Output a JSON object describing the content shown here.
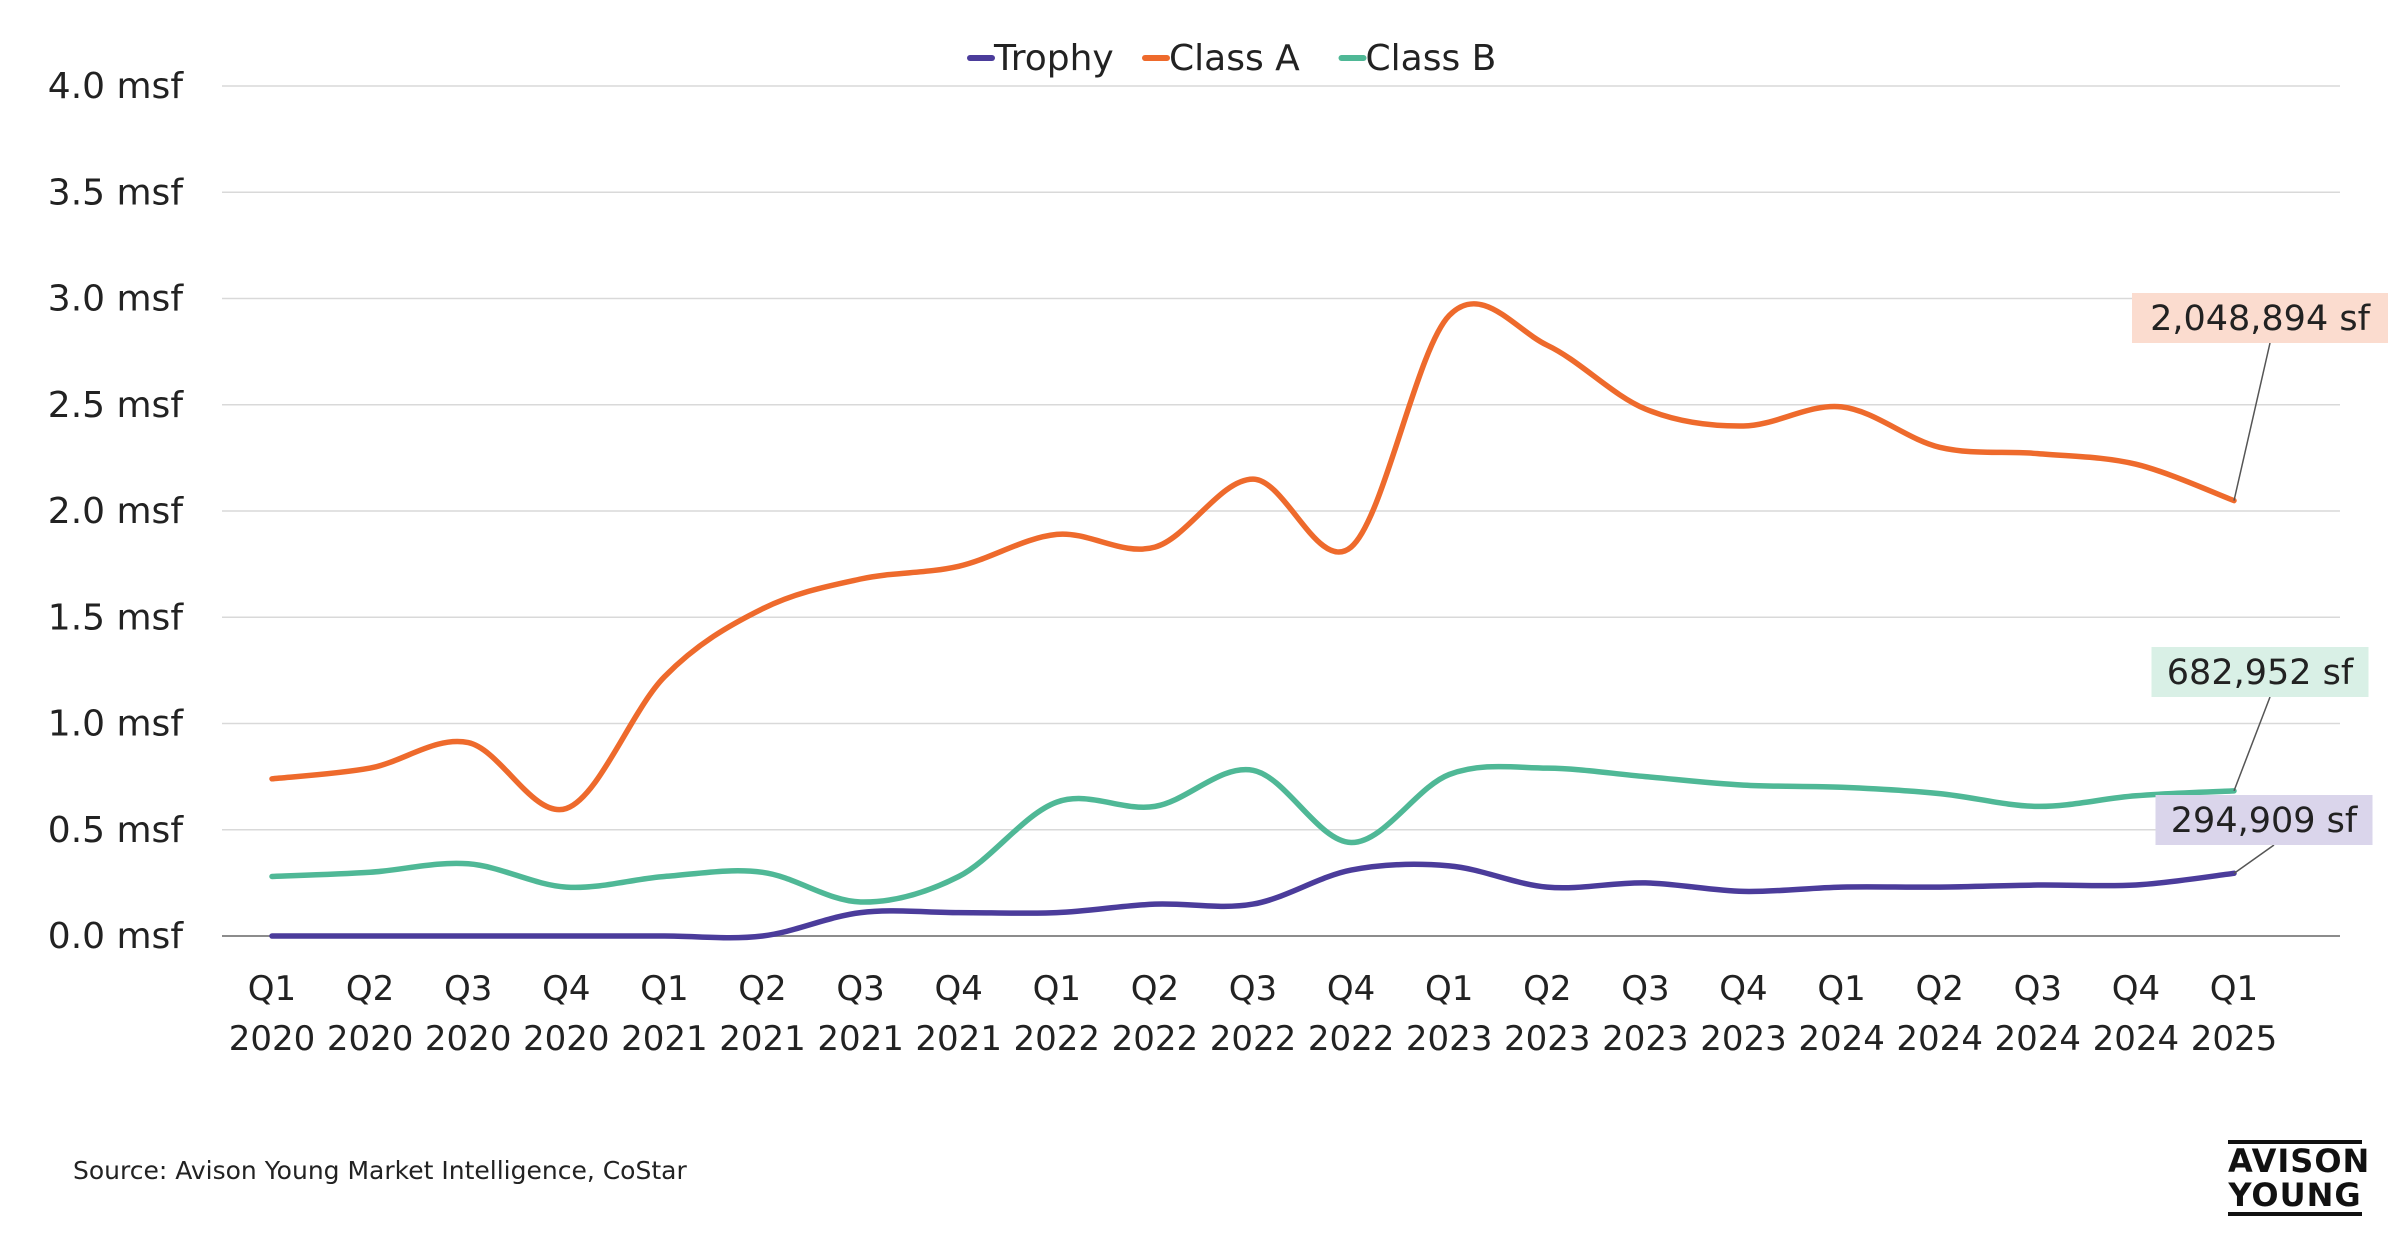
{
  "chart_data": {
    "type": "line",
    "categories": [
      [
        "Q1",
        "2020"
      ],
      [
        "Q2",
        "2020"
      ],
      [
        "Q3",
        "2020"
      ],
      [
        "Q4",
        "2020"
      ],
      [
        "Q1",
        "2021"
      ],
      [
        "Q2",
        "2021"
      ],
      [
        "Q3",
        "2021"
      ],
      [
        "Q4",
        "2021"
      ],
      [
        "Q1",
        "2022"
      ],
      [
        "Q2",
        "2022"
      ],
      [
        "Q3",
        "2022"
      ],
      [
        "Q4",
        "2022"
      ],
      [
        "Q1",
        "2023"
      ],
      [
        "Q2",
        "2023"
      ],
      [
        "Q3",
        "2023"
      ],
      [
        "Q4",
        "2023"
      ],
      [
        "Q1",
        "2024"
      ],
      [
        "Q2",
        "2024"
      ],
      [
        "Q3",
        "2024"
      ],
      [
        "Q4",
        "2024"
      ],
      [
        "Q1",
        "2025"
      ]
    ],
    "series": [
      {
        "name": "Trophy",
        "color": "#4B3C9B",
        "values": [
          0.0,
          0.0,
          0.0,
          0.0,
          0.0,
          0.0,
          0.11,
          0.11,
          0.11,
          0.15,
          0.15,
          0.31,
          0.33,
          0.23,
          0.25,
          0.21,
          0.23,
          0.23,
          0.24,
          0.24,
          0.294909
        ],
        "end_label": "294,909 sf",
        "label_bg": "#DAD5EB"
      },
      {
        "name": "Class A",
        "color": "#EE6A2C",
        "values": [
          0.74,
          0.79,
          0.91,
          0.6,
          1.22,
          1.54,
          1.68,
          1.74,
          1.89,
          1.83,
          2.15,
          1.83,
          2.92,
          2.78,
          2.48,
          2.4,
          2.49,
          2.3,
          2.27,
          2.22,
          2.048894
        ],
        "end_label": "2,048,894 sf",
        "label_bg": "#FBDCCF"
      },
      {
        "name": "Class B",
        "color": "#4FB896",
        "values": [
          0.28,
          0.3,
          0.34,
          0.23,
          0.28,
          0.3,
          0.16,
          0.28,
          0.63,
          0.61,
          0.78,
          0.44,
          0.76,
          0.79,
          0.75,
          0.71,
          0.7,
          0.67,
          0.61,
          0.66,
          0.682952
        ],
        "end_label": "682,952 sf",
        "label_bg": "#D9F0E6"
      }
    ],
    "yticks": [
      0,
      0.5,
      1.0,
      1.5,
      2.0,
      2.5,
      3.0,
      3.5,
      4.0
    ],
    "ytick_labels": [
      "0.0 msf",
      "0.5 msf",
      "1.0 msf",
      "1.5 msf",
      "2.0 msf",
      "2.5 msf",
      "3.0 msf",
      "3.5 msf",
      "4.0 msf"
    ],
    "ylim": [
      0,
      4.0
    ],
    "grid": true,
    "legend_position": "top-center"
  },
  "source_text": "Source: Avison Young Market Intelligence, CoStar",
  "logo": {
    "line1": "AVISON",
    "line2": "YOUNG"
  }
}
